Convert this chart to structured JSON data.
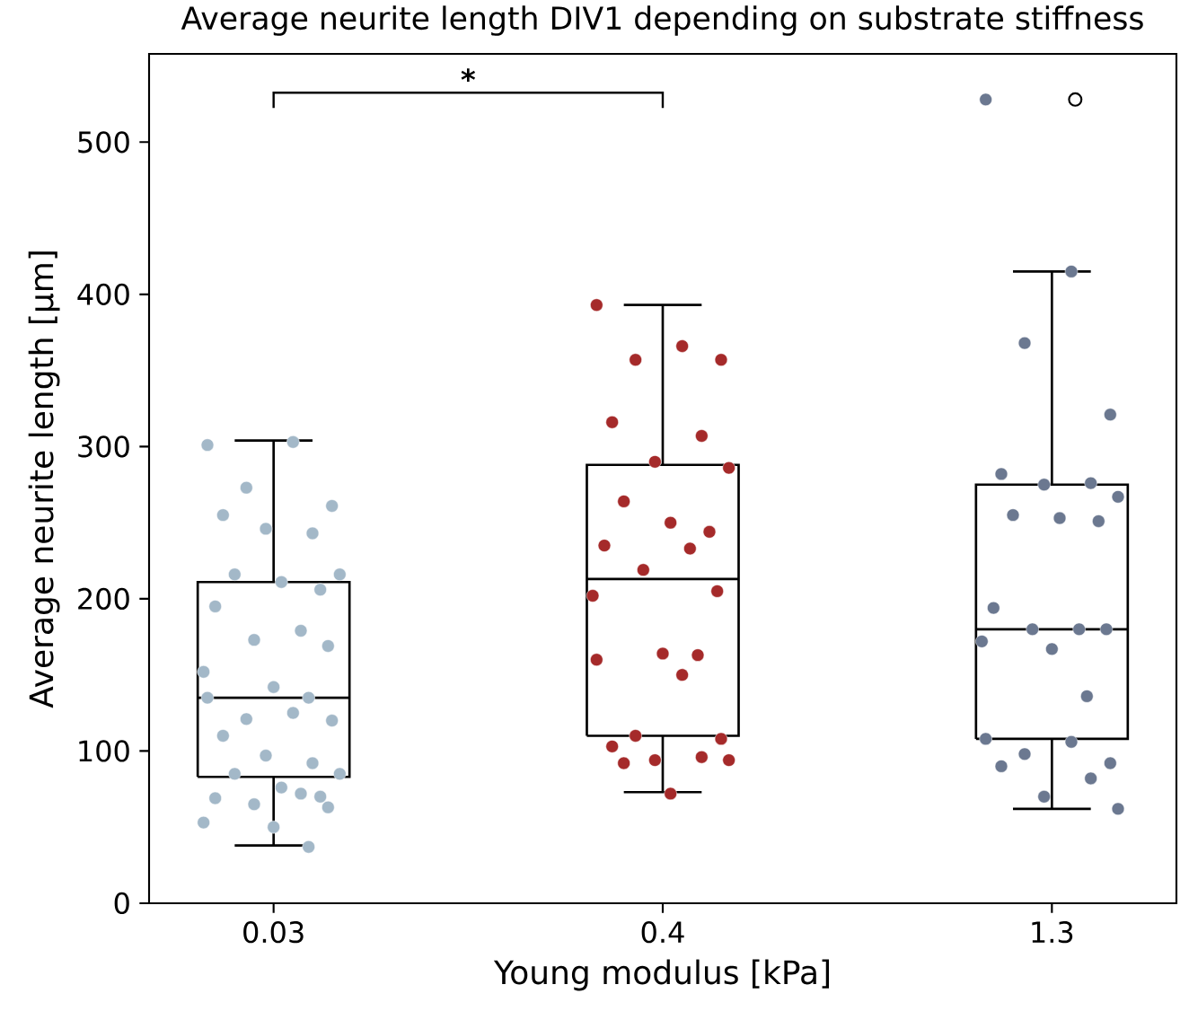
{
  "chart_data": {
    "type": "box",
    "title": "Average neurite length DIV1 depending on substrate stiffness",
    "xlabel": "Young modulus [kPa]",
    "ylabel": "Average neurite length [µm]",
    "categories": [
      "0.03",
      "0.4",
      "1.3"
    ],
    "marker": "circle",
    "ylim": [
      0,
      558
    ],
    "yticks": [
      0,
      100,
      200,
      300,
      400,
      500
    ],
    "boxes": [
      {
        "low": 38,
        "q1": 83,
        "median": 135,
        "q3": 211,
        "high": 304
      },
      {
        "low": 73,
        "q1": 110,
        "median": 213,
        "q3": 288,
        "high": 393
      },
      {
        "low": 62,
        "q1": 108,
        "median": 180,
        "q3": 275,
        "high": 415,
        "outliers": [
          528
        ]
      }
    ],
    "series": [
      {
        "type": "scatter",
        "color": "#a3b8c8",
        "x": [
          "0.03",
          "0.03",
          "0.03",
          "0.03",
          "0.03",
          "0.03",
          "0.03",
          "0.03",
          "0.03",
          "0.03",
          "0.03",
          "0.03",
          "0.03",
          "0.03",
          "0.03",
          "0.03",
          "0.03",
          "0.03",
          "0.03",
          "0.03",
          "0.03",
          "0.03",
          "0.03",
          "0.03",
          "0.03",
          "0.03",
          "0.03",
          "0.03",
          "0.03",
          "0.03",
          "0.03",
          "0.03",
          "0.03",
          "0.03",
          "0.03",
          "0.03"
        ],
        "values": [
          301,
          303,
          273,
          261,
          255,
          243,
          246,
          216,
          216,
          211,
          206,
          195,
          179,
          173,
          169,
          152,
          142,
          135,
          135,
          125,
          121,
          120,
          110,
          92,
          97,
          85,
          85,
          76,
          70,
          69,
          72,
          65,
          63,
          53,
          50,
          37
        ]
      },
      {
        "type": "scatter",
        "color": "#a52a2a",
        "x": [
          "0.4",
          "0.4",
          "0.4",
          "0.4",
          "0.4",
          "0.4",
          "0.4",
          "0.4",
          "0.4",
          "0.4",
          "0.4",
          "0.4",
          "0.4",
          "0.4",
          "0.4",
          "0.4",
          "0.4",
          "0.4",
          "0.4",
          "0.4",
          "0.4",
          "0.4",
          "0.4",
          "0.4",
          "0.4",
          "0.4",
          "0.4",
          "0.4"
        ],
        "values": [
          393,
          366,
          357,
          357,
          316,
          307,
          290,
          286,
          264,
          250,
          244,
          235,
          233,
          219,
          205,
          202,
          164,
          163,
          160,
          150,
          110,
          108,
          103,
          96,
          94,
          94,
          92,
          72
        ]
      },
      {
        "type": "scatter",
        "color": "#6b7890",
        "x": [
          "1.3",
          "1.3",
          "1.3",
          "1.3",
          "1.3",
          "1.3",
          "1.3",
          "1.3",
          "1.3",
          "1.3",
          "1.3",
          "1.3",
          "1.3",
          "1.3",
          "1.3",
          "1.3",
          "1.3",
          "1.3",
          "1.3",
          "1.3",
          "1.3",
          "1.3",
          "1.3",
          "1.3",
          "1.3",
          "1.3"
        ],
        "values": [
          528,
          415,
          368,
          321,
          282,
          276,
          275,
          267,
          255,
          253,
          251,
          194,
          180,
          180,
          180,
          172,
          167,
          136,
          108,
          106,
          98,
          92,
          90,
          82,
          70,
          62
        ]
      }
    ],
    "annotations": [
      "*"
    ]
  }
}
